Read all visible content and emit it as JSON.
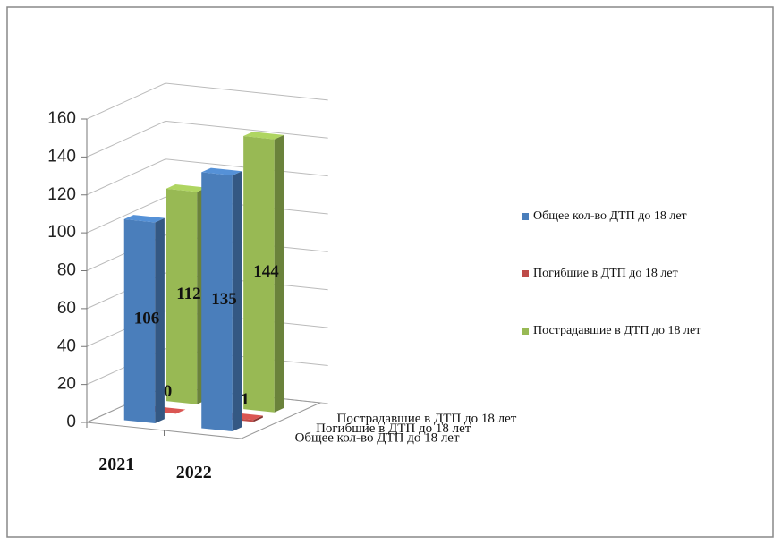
{
  "chart_data": {
    "type": "bar3d",
    "categories": [
      "2021",
      "2022"
    ],
    "series": [
      {
        "name": "Общее кол-во ДТП до 18 лет",
        "color": "#4a7ebb",
        "values": [
          106,
          135
        ]
      },
      {
        "name": "Погибшие в ДТП до 18 лет",
        "color": "#be4b48",
        "values": [
          0,
          1
        ]
      },
      {
        "name": "Пострадавшие в ДТП до 18 лет",
        "color": "#98b954",
        "values": [
          112,
          144
        ]
      }
    ],
    "ylim": [
      0,
      160
    ],
    "yticks": [
      0,
      20,
      40,
      60,
      80,
      100,
      120,
      140,
      160
    ],
    "grid": true,
    "legend": "right"
  }
}
